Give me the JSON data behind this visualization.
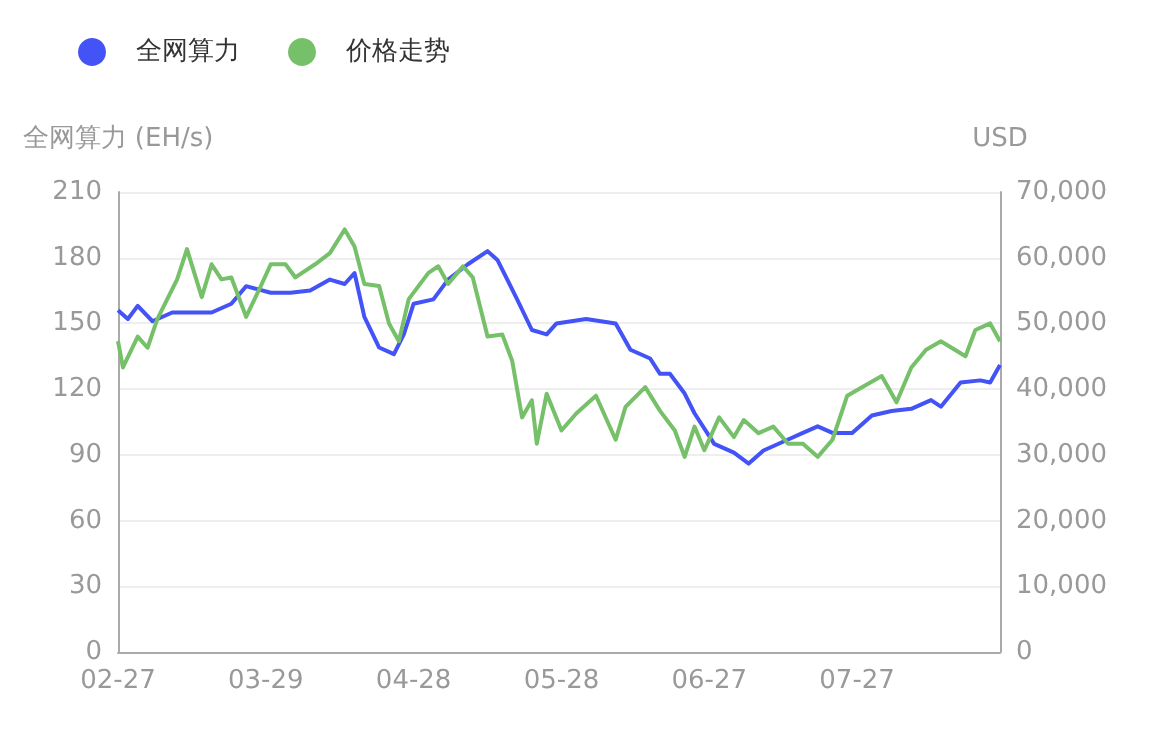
{
  "chart_data": {
    "type": "line",
    "ylabel": "全网算力 (EH/s)",
    "y2label": "USD",
    "legend": "top left",
    "grid": "y",
    "marker": "none",
    "line_style": "solid",
    "xlim": [
      "--02-27",
      "--08-25"
    ],
    "xticks": [
      {
        "value": "--02-27",
        "label": "02-27"
      },
      {
        "value": "--03-29",
        "label": "03-29"
      },
      {
        "value": "--04-28",
        "label": "04-28"
      },
      {
        "value": "--05-28",
        "label": "05-28"
      },
      {
        "value": "--06-27",
        "label": "06-27"
      },
      {
        "value": "--07-27",
        "label": "07-27"
      }
    ],
    "ylim": [
      0,
      210
    ],
    "yticks": [
      0,
      30,
      60,
      90,
      120,
      150,
      180,
      210
    ],
    "y2lim": [
      0,
      70000
    ],
    "y2ticks": [
      0,
      {
        "value": 10000,
        "label": "10,000"
      },
      {
        "value": 20000,
        "label": "20,000"
      },
      {
        "value": 30000,
        "label": "30,000"
      },
      {
        "value": 40000,
        "label": "40,000"
      },
      {
        "value": 50000,
        "label": "50,000"
      },
      {
        "value": 60000,
        "label": "60,000"
      },
      {
        "value": 70000,
        "label": "70,000"
      }
    ],
    "series": [
      {
        "name": "全网算力",
        "color": "#4353f5",
        "x": [
          "--02-27",
          "--03-01",
          "--03-03",
          "--03-06",
          "--03-10",
          "--03-18",
          "--03-22",
          "--03-25",
          "--03-30",
          "--04-03",
          "--04-07",
          "--04-11",
          "--04-14",
          "--04-16",
          "--04-18",
          "--04-21",
          "--04-24",
          "--04-26",
          "--04-28",
          "--05-02",
          "--05-05",
          "--05-09",
          "--05-13",
          "--05-15",
          "--05-19",
          "--05-22",
          "--05-25",
          "--05-27",
          "--06-02",
          "--06-08",
          "--06-11",
          "--06-15",
          "--06-17",
          "--06-19",
          "--06-22",
          "--06-24",
          "--06-28",
          "--07-02",
          "--07-05",
          "--07-08",
          "--07-13",
          "--07-16",
          "--07-19",
          "--07-22",
          "--07-26",
          "--07-30",
          "--08-03",
          "--08-07",
          "--08-11",
          "--08-13",
          "--08-17",
          "--08-21",
          "--08-23",
          "--08-25"
        ],
        "values": [
          156,
          152,
          158,
          151,
          155,
          155,
          159,
          167,
          164,
          164,
          165,
          170,
          168,
          173,
          153,
          139,
          136,
          145,
          159,
          161,
          170,
          177,
          183,
          179,
          161,
          147,
          145,
          150,
          152,
          150,
          138,
          134,
          127,
          127,
          118,
          109,
          95,
          91,
          86,
          92,
          97,
          100,
          103,
          100,
          100,
          108,
          110,
          111,
          115,
          112,
          123,
          124,
          123,
          131
        ]
      },
      {
        "name": "价格走势",
        "color": "#75c068",
        "axis": "y2",
        "x": [
          "--02-27",
          "--02-28",
          "--03-03",
          "--03-05",
          "--03-07",
          "--03-09",
          "--03-11",
          "--03-13",
          "--03-16",
          "--03-18",
          "--03-20",
          "--03-22",
          "--03-25",
          "--03-28",
          "--03-30",
          "--04-02",
          "--04-04",
          "--04-08",
          "--04-11",
          "--04-14",
          "--04-16",
          "--04-18",
          "--04-21",
          "--04-23",
          "--04-25",
          "--04-27",
          "--05-01",
          "--05-03",
          "--05-05",
          "--05-08",
          "--05-10",
          "--05-13",
          "--05-16",
          "--05-18",
          "--05-20",
          "--05-22",
          "--05-23",
          "--05-25",
          "--05-28",
          "--05-31",
          "--06-04",
          "--06-08",
          "--06-10",
          "--06-14",
          "--06-17",
          "--06-20",
          "--06-22",
          "--06-24",
          "--06-26",
          "--06-29",
          "--07-02",
          "--07-04",
          "--07-07",
          "--07-10",
          "--07-13",
          "--07-16",
          "--07-19",
          "--07-22",
          "--07-25",
          "--07-28",
          "--08-01",
          "--08-04",
          "--08-07",
          "--08-10",
          "--08-13",
          "--08-18",
          "--08-20",
          "--08-23",
          "--08-25"
        ],
        "values": [
          47300,
          43300,
          48000,
          46300,
          50700,
          53700,
          56700,
          61300,
          54000,
          59000,
          56700,
          57000,
          51000,
          55700,
          59000,
          59000,
          57000,
          59000,
          60700,
          64300,
          61700,
          56000,
          55700,
          50000,
          47300,
          53700,
          57700,
          58700,
          56000,
          58700,
          57000,
          48000,
          48300,
          44300,
          35700,
          38300,
          31700,
          39300,
          33700,
          36300,
          39000,
          32300,
          37300,
          40300,
          36700,
          33700,
          29700,
          34300,
          30700,
          35700,
          32700,
          35300,
          33300,
          34300,
          31700,
          31700,
          29700,
          32300,
          39000,
          40300,
          42000,
          38000,
          43300,
          46000,
          47300,
          45000,
          49000,
          50000,
          47300
        ]
      }
    ]
  }
}
